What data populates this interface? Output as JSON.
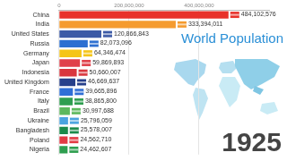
{
  "chart_data": {
    "type": "bar",
    "orientation": "horizontal",
    "title": "World Population",
    "annotations": [
      "1925"
    ],
    "categories": [
      "China",
      "India",
      "United States",
      "Russia",
      "Germany",
      "Japan",
      "Indonesia",
      "United Kingdom",
      "France",
      "Italy",
      "Brazil",
      "Ukraine",
      "Bangladesh",
      "Poland",
      "Nigeria"
    ],
    "values": [
      484102576,
      333394011,
      120866843,
      82073096,
      64346474,
      59869893,
      50660007,
      46669637,
      39665896,
      38865800,
      30997688,
      25796059,
      25578007,
      24562710,
      24462607
    ],
    "value_labels": [
      "484,102,576",
      "333,394,011",
      "120,866,843",
      "82,073,096",
      "64,346,474",
      "59,869,893",
      "50,660,007",
      "46,669,637",
      "39,665,896",
      "38,865,800",
      "30,997,688",
      "25,796,059",
      "25,578,007",
      "24,562,710",
      "24,462,607"
    ],
    "colors": [
      "#e8322b",
      "#f59b2f",
      "#3c5aa6",
      "#2c6fd1",
      "#f5c518",
      "#e0404a",
      "#d9363e",
      "#27408b",
      "#2f6fd6",
      "#2e9e4f",
      "#5cb85c",
      "#4aa3df",
      "#1b8a4a",
      "#e23b44",
      "#2e9e4f"
    ],
    "xlim": [
      0,
      600000000
    ],
    "xticks": [
      0,
      {
        "value": 200000000,
        "label": "200,000,000"
      },
      {
        "value": 400000000,
        "label": "400,000,000"
      }
    ],
    "grid": true,
    "data_labels": true
  }
}
